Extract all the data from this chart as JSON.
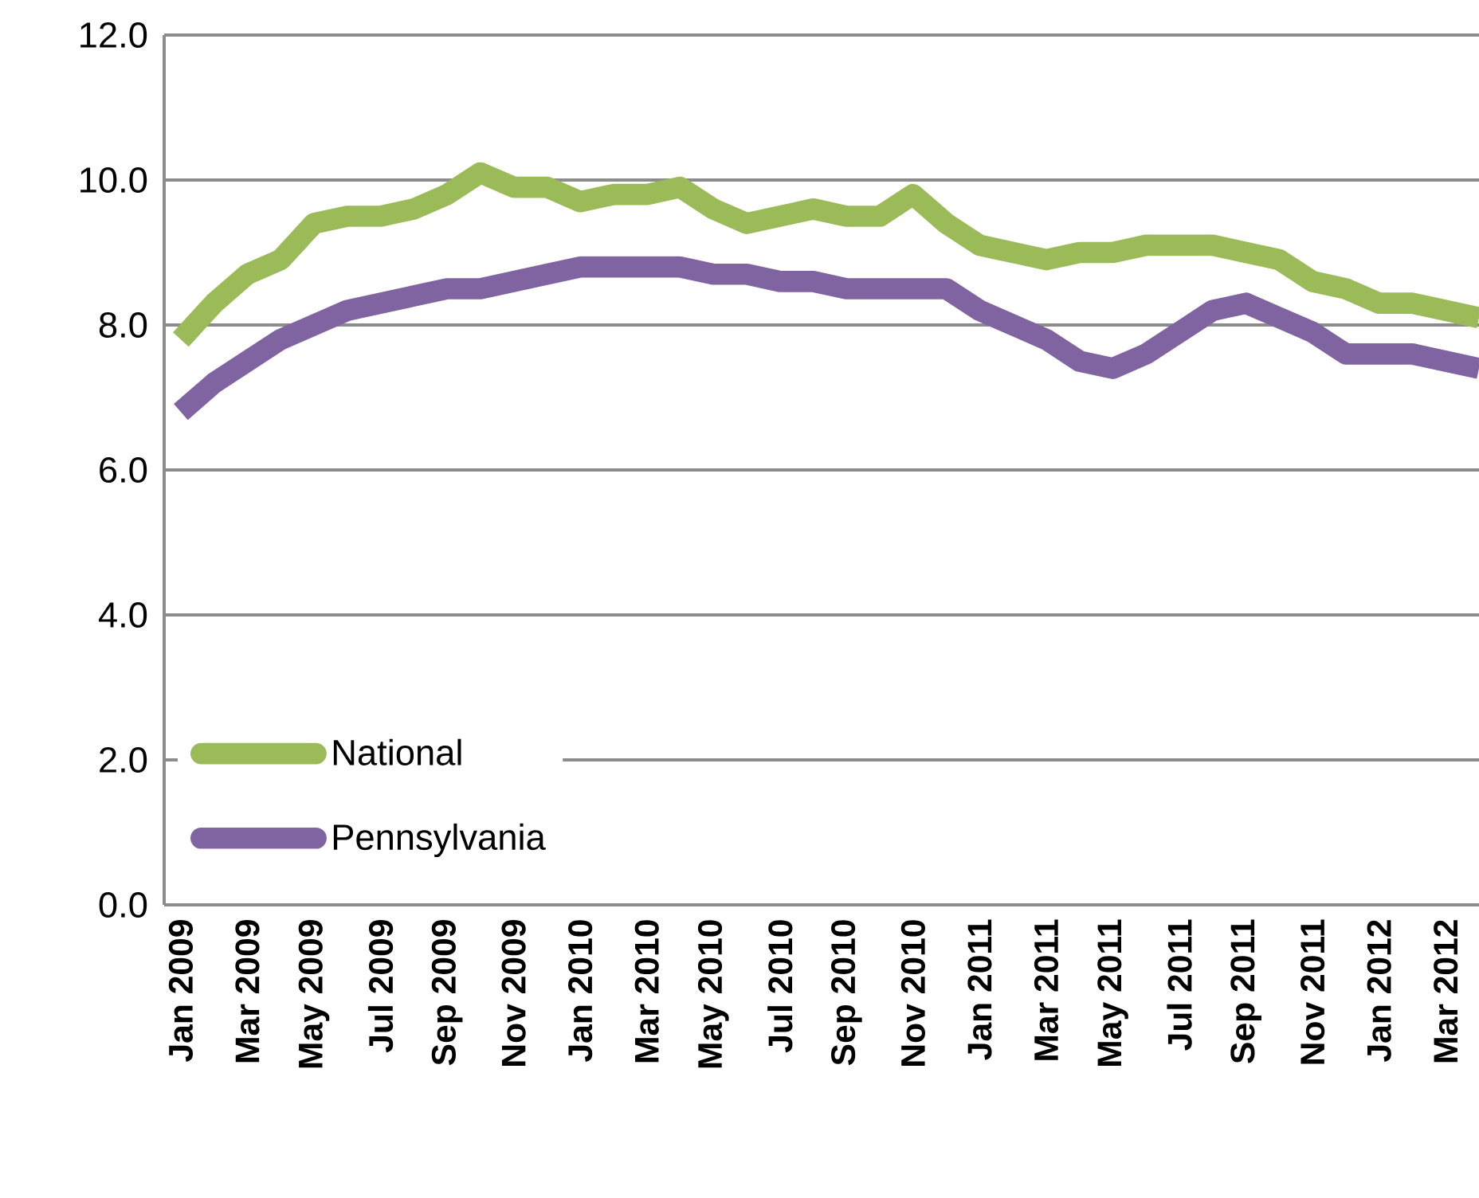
{
  "chart_data": {
    "type": "line",
    "categories": [
      "Jan 2009",
      null,
      "Mar 2009",
      null,
      "May 2009",
      null,
      "Jul 2009",
      null,
      "Sep 2009",
      null,
      "Nov 2009",
      null,
      "Jan 2010",
      null,
      "Mar 2010",
      null,
      "May 2010",
      null,
      "Jul 2010",
      null,
      "Sep 2010",
      null,
      "Nov 2010",
      null,
      "Jan 2011",
      null,
      "Mar 2011",
      null,
      "May 2011",
      null,
      "Jul 2011",
      null,
      "Sep 2011",
      null,
      "Nov 2011",
      null,
      "Jan 2012",
      null,
      "Mar 2012",
      null
    ],
    "series": [
      {
        "name": "National",
        "color": "#9bbb59",
        "values": [
          7.8,
          8.3,
          8.7,
          8.9,
          9.4,
          9.5,
          9.5,
          9.6,
          9.8,
          10.1,
          9.9,
          9.9,
          9.7,
          9.8,
          9.8,
          9.9,
          9.6,
          9.4,
          9.5,
          9.6,
          9.5,
          9.5,
          9.8,
          9.4,
          9.1,
          9.0,
          8.9,
          9.0,
          9.0,
          9.1,
          9.1,
          9.1,
          9.0,
          8.9,
          8.6,
          8.5,
          8.3,
          8.3,
          8.2,
          8.1
        ]
      },
      {
        "name": "Pennsylvania",
        "color": "#8064a2",
        "values": [
          6.8,
          7.2,
          7.5,
          7.8,
          8.0,
          8.2,
          8.3,
          8.4,
          8.5,
          8.5,
          8.6,
          8.7,
          8.8,
          8.8,
          8.8,
          8.8,
          8.7,
          8.7,
          8.6,
          8.6,
          8.5,
          8.5,
          8.5,
          8.5,
          8.2,
          8.0,
          7.8,
          7.5,
          7.4,
          7.6,
          7.9,
          8.2,
          8.3,
          8.1,
          7.9,
          7.6,
          7.6,
          7.6,
          7.5,
          7.4
        ]
      }
    ],
    "ylim": [
      0,
      12
    ],
    "yticks": [
      {
        "value": 0,
        "label": "0.0"
      },
      {
        "value": 2,
        "label": "2.0"
      },
      {
        "value": 4,
        "label": "4.0"
      },
      {
        "value": 6,
        "label": "6.0"
      },
      {
        "value": 8,
        "label": "8.0"
      },
      {
        "value": 10,
        "label": "10.0"
      },
      {
        "value": 12,
        "label": "12.0"
      }
    ],
    "grid": "y",
    "legend": "bottom left",
    "line_style": "solid"
  }
}
